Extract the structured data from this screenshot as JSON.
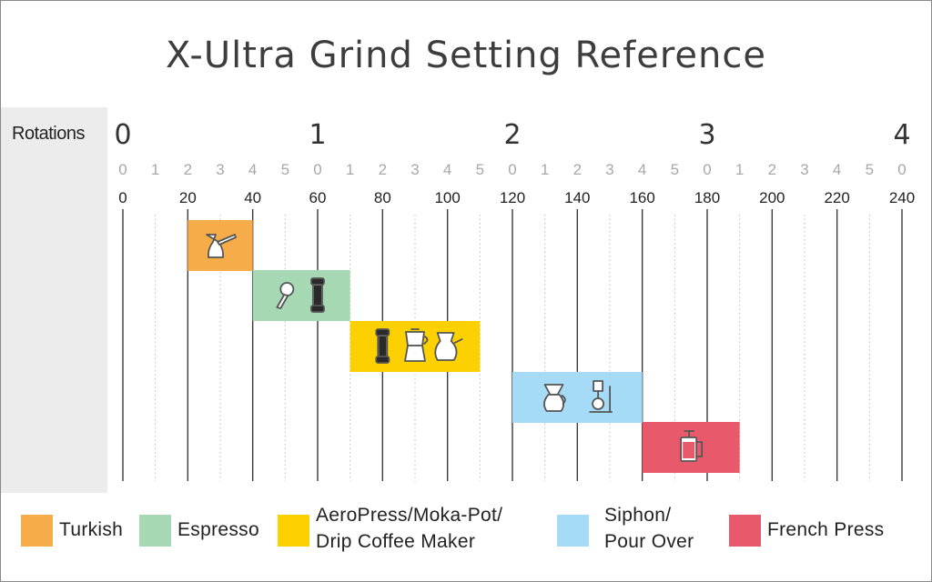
{
  "title": "X-Ultra Grind Setting Reference",
  "rotations_label": "Rotations",
  "chart_data": {
    "type": "bar",
    "orientation": "horizontal-range",
    "title": "X-Ultra Grind Setting Reference",
    "xlim": [
      0,
      240
    ],
    "rotation_ticks": [
      "0",
      "1",
      "2",
      "3",
      "4"
    ],
    "sub_ticks": [
      "0",
      "1",
      "2",
      "3",
      "4",
      "5",
      "0",
      "1",
      "2",
      "3",
      "4",
      "5",
      "0",
      "1",
      "2",
      "3",
      "4",
      "5",
      "0",
      "1",
      "2",
      "3",
      "4",
      "5",
      "0"
    ],
    "click_ticks": [
      "0",
      "20",
      "40",
      "60",
      "80",
      "100",
      "120",
      "140",
      "160",
      "180",
      "200",
      "220",
      "240"
    ],
    "grid": true,
    "series": [
      {
        "name": "Turkish",
        "start": 20,
        "end": 40,
        "color": "#f6ac48"
      },
      {
        "name": "Espresso",
        "start": 40,
        "end": 70,
        "color": "#a6d8b4"
      },
      {
        "name": "AeroPress/Moka-Pot/ Drip Coffee Maker",
        "start": 70,
        "end": 110,
        "color": "#fdd000"
      },
      {
        "name": "Siphon/ Pour Over",
        "start": 120,
        "end": 160,
        "color": "#a6dbf7"
      },
      {
        "name": "French Press",
        "start": 160,
        "end": 190,
        "color": "#e85a6b"
      }
    ]
  },
  "legend": [
    {
      "lines": [
        "Turkish"
      ],
      "color": "#f6ac48",
      "icon": "turkish-legend-swatch"
    },
    {
      "lines": [
        "Espresso"
      ],
      "color": "#a6d8b4",
      "icon": "espresso-legend-swatch"
    },
    {
      "lines": [
        "AeroPress/Moka-Pot/",
        "Drip Coffee Maker"
      ],
      "color": "#fdd000",
      "icon": "aeropress-legend-swatch"
    },
    {
      "lines": [
        "Siphon/",
        "Pour Over"
      ],
      "color": "#a6dbf7",
      "icon": "siphon-legend-swatch"
    },
    {
      "lines": [
        "French Press"
      ],
      "color": "#e85a6b",
      "icon": "french-press-legend-swatch"
    }
  ],
  "bar_icons": [
    [
      "turkish-pot-icon"
    ],
    [
      "portafilter-icon",
      "aeropress-icon"
    ],
    [
      "aeropress-icon",
      "moka-pot-icon",
      "drip-carafe-icon"
    ],
    [
      "pour-over-icon",
      "siphon-icon"
    ],
    [
      "french-press-icon"
    ]
  ]
}
